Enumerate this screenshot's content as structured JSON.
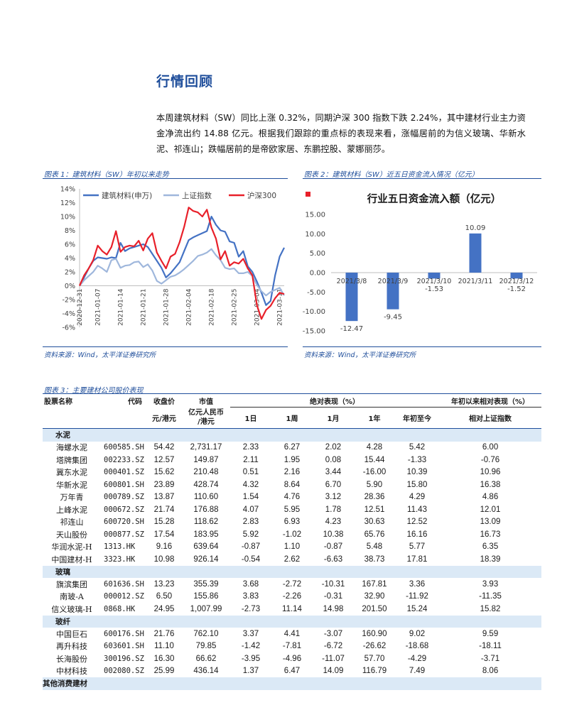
{
  "section_title": "行情回顾",
  "intro": "本周建筑材料（SW）同比上涨 0.32%，同期沪深 300 指数下跌 2.24%，其中建材行业主力资金净流出约 14.88 亿元。根据我们跟踪的重点标的表现来看，涨幅居前的为信义玻璃、华新水泥、祁连山；跌幅居前的是帝欧家居、东鹏控股、蒙娜丽莎。",
  "figure1": {
    "caption": "图表 1：建筑材料（SW）年初以来走势",
    "source": "资料来源：Wind，太平洋证券研究所"
  },
  "figure2": {
    "caption": "图表 2：建筑材料（SW）近五日资金流入情况（亿元）",
    "source": "资料来源：Wind，太平洋证券研究所"
  },
  "figure3_caption": "图表 3：主要建材公司股价表现",
  "chart_data": [
    {
      "type": "line",
      "title": "",
      "x": [
        "2020-12-31",
        "2021-01-04",
        "2021-01-05",
        "2021-01-06",
        "2021-01-07",
        "2021-01-08",
        "2021-01-11",
        "2021-01-12",
        "2021-01-13",
        "2021-01-14",
        "2021-01-15",
        "2021-01-18",
        "2021-01-19",
        "2021-01-20",
        "2021-01-21",
        "2021-01-22",
        "2021-01-25",
        "2021-01-26",
        "2021-01-27",
        "2021-01-28",
        "2021-01-29",
        "2021-02-01",
        "2021-02-02",
        "2021-02-03",
        "2021-02-04",
        "2021-02-05",
        "2021-02-08",
        "2021-02-09",
        "2021-02-10",
        "2021-02-18",
        "2021-02-19",
        "2021-02-22",
        "2021-02-23",
        "2021-02-24",
        "2021-02-25",
        "2021-02-26",
        "2021-03-01",
        "2021-03-02",
        "2021-03-03",
        "2021-03-04",
        "2021-03-05",
        "2021-03-08",
        "2021-03-09",
        "2021-03-10",
        "2021-03-11",
        "2021-03-12"
      ],
      "x_ticks": [
        "2020-12-31",
        "2021-01-07",
        "2021-01-14",
        "2021-01-21",
        "2021-01-28",
        "2021-02-04",
        "2021-02-11",
        "2021-02-18",
        "2021-02-25",
        "2021-03-04",
        "2021-03-11"
      ],
      "ylim": [
        -6,
        14
      ],
      "y_ticks": [
        "-6%",
        "-4%",
        "-2%",
        "0%",
        "2%",
        "4%",
        "6%",
        "8%",
        "10%",
        "12%",
        "14%"
      ],
      "legend_position": "top",
      "series": [
        {
          "name": "建筑材料(申万)",
          "color": "#4472c4",
          "values": [
            0,
            1.2,
            2.5,
            3.6,
            4.1,
            4.0,
            3.9,
            4.1,
            4.0,
            6.2,
            5.0,
            5.4,
            5.6,
            5.8,
            6.0,
            5.6,
            4.6,
            3.6,
            2.6,
            1.2,
            1.8,
            2.6,
            3.4,
            5.0,
            6.6,
            7.0,
            7.3,
            7.6,
            7.9,
            10.0,
            8.8,
            8.0,
            7.8,
            6.4,
            6.2,
            4.2,
            5.0,
            2.8,
            2.0,
            0.6,
            -1.0,
            -2.8,
            -2.2,
            1.5,
            4.2,
            5.5
          ]
        },
        {
          "name": "上证指数",
          "color": "#9fb7dc",
          "values": [
            0,
            0.8,
            1.4,
            2.0,
            2.9,
            2.5,
            2.0,
            3.7,
            3.9,
            2.6,
            2.9,
            3.0,
            3.4,
            3.5,
            2.7,
            3.1,
            2.2,
            0.7,
            0.3,
            0.8,
            1.3,
            1.5,
            1.9,
            2.4,
            3.0,
            3.6,
            4.3,
            4.5,
            4.8,
            5.3,
            4.4,
            3.7,
            2.6,
            2.4,
            2.5,
            1.8,
            1.8,
            2.0,
            1.4,
            0.1,
            -0.8,
            -1.4,
            -0.9,
            -0.6,
            -0.3,
            -1.4
          ]
        },
        {
          "name": "沪深300",
          "color": "#e8202a",
          "values": [
            0,
            1.5,
            2.5,
            3.7,
            5.8,
            5.0,
            4.5,
            5.6,
            7.9,
            4.9,
            5.6,
            5.8,
            5.7,
            6.5,
            5.1,
            6.8,
            7.6,
            4.8,
            3.6,
            2.5,
            4.2,
            4.6,
            6.3,
            8.5,
            11.3,
            10.8,
            10.6,
            10.0,
            11.0,
            8.4,
            6.8,
            3.8,
            5.0,
            2.9,
            3.4,
            3.2,
            3.9,
            2.5,
            1.5,
            -2.8,
            -4.8,
            -3.5,
            -2.9,
            -1.8,
            -1.0,
            -1.2
          ]
        }
      ]
    },
    {
      "type": "bar",
      "title": "行业五日资金流入额（亿元）",
      "categories": [
        "2021/3/8",
        "2021/3/9",
        "2021/3/10",
        "2021/3/11",
        "2021/3/12"
      ],
      "values": [
        -12.47,
        -9.45,
        -1.53,
        10.09,
        -1.52
      ],
      "value_labels": [
        "-12.47",
        "-9.45",
        "-1.53",
        "10.09",
        "-1.52"
      ],
      "ylim": [
        -15,
        15
      ],
      "y_ticks": [
        "-15.00",
        "-10.00",
        "-5.00",
        "0.00",
        "5.00",
        "10.00",
        "15.00"
      ],
      "bar_color": "#4472c4",
      "legend_marker_color": "#e8202a"
    }
  ],
  "table": {
    "headers": {
      "name": "股票名称",
      "code": "代码",
      "price": "收盘价",
      "cap": "市值",
      "abs_group": "绝对表现（%）",
      "rel_group": "年初以来相对表现（%）",
      "price_unit": "元/港元",
      "cap_unit_1": "亿元人民币",
      "cap_unit_2": "/港元",
      "d1": "1日",
      "w1": "1周",
      "m1": "1月",
      "y1": "1年",
      "ytd": "年初至今",
      "rel": "相对上证指数"
    },
    "groups": [
      {
        "label": "水泥",
        "rows": [
          [
            "海螺水泥",
            "600585.SH",
            "54.42",
            "2,731.17",
            "2.33",
            "6.27",
            "2.02",
            "4.28",
            "5.42",
            "6.00"
          ],
          [
            "塔牌集团",
            "002233.SZ",
            "12.57",
            "149.87",
            "2.11",
            "1.95",
            "0.08",
            "15.44",
            "-1.33",
            "-0.76"
          ],
          [
            "冀东水泥",
            "000401.SZ",
            "15.62",
            "210.48",
            "0.51",
            "2.16",
            "3.44",
            "-16.00",
            "10.39",
            "10.96"
          ],
          [
            "华新水泥",
            "600801.SH",
            "23.89",
            "428.74",
            "4.32",
            "8.64",
            "6.70",
            "5.90",
            "15.80",
            "16.38"
          ],
          [
            "万年青",
            "000789.SZ",
            "13.87",
            "110.60",
            "1.54",
            "4.76",
            "3.12",
            "28.36",
            "4.29",
            "4.86"
          ],
          [
            "上峰水泥",
            "000672.SZ",
            "21.74",
            "176.88",
            "4.07",
            "5.95",
            "1.78",
            "12.51",
            "11.43",
            "12.01"
          ],
          [
            "祁连山",
            "600720.SH",
            "15.28",
            "118.62",
            "2.83",
            "6.93",
            "4.23",
            "30.63",
            "12.52",
            "13.09"
          ],
          [
            "天山股份",
            "000877.SZ",
            "17.54",
            "183.95",
            "5.92",
            "-1.02",
            "10.38",
            "65.76",
            "16.16",
            "16.73"
          ],
          [
            "华润水泥-H",
            "1313.HK",
            "9.16",
            "639.64",
            "-0.87",
            "1.10",
            "-0.87",
            "5.48",
            "5.77",
            "6.35"
          ],
          [
            "中国建材-H",
            "3323.HK",
            "10.98",
            "926.14",
            "-0.54",
            "2.62",
            "-6.63",
            "38.73",
            "17.81",
            "18.39"
          ]
        ]
      },
      {
        "label": "玻璃",
        "rows": [
          [
            "旗滨集团",
            "601636.SH",
            "13.23",
            "355.39",
            "3.68",
            "-2.72",
            "-10.31",
            "167.81",
            "3.36",
            "3.93"
          ],
          [
            "南玻-A",
            "000012.SZ",
            "6.50",
            "155.86",
            "3.83",
            "-2.26",
            "-0.31",
            "32.90",
            "-11.92",
            "-11.35"
          ],
          [
            "信义玻璃-H",
            "0868.HK",
            "24.95",
            "1,007.99",
            "-2.73",
            "11.14",
            "14.98",
            "201.50",
            "15.24",
            "15.82"
          ]
        ]
      },
      {
        "label": "玻纤",
        "rows": [
          [
            "中国巨石",
            "600176.SH",
            "21.76",
            "762.10",
            "3.37",
            "4.41",
            "-3.07",
            "160.90",
            "9.02",
            "9.59"
          ],
          [
            "再升科技",
            "603601.SH",
            "11.10",
            "79.85",
            "-1.42",
            "-7.81",
            "-6.72",
            "-26.62",
            "-18.68",
            "-18.11"
          ],
          [
            "长海股份",
            "300196.SZ",
            "16.30",
            "66.62",
            "-3.95",
            "-4.96",
            "-11.07",
            "57.70",
            "-4.29",
            "-3.71"
          ],
          [
            "中材科技",
            "002080.SZ",
            "25.99",
            "436.14",
            "1.37",
            "6.47",
            "14.09",
            "116.79",
            "7.49",
            "8.06"
          ]
        ]
      },
      {
        "label": "其他消费建材",
        "rows": []
      }
    ]
  }
}
